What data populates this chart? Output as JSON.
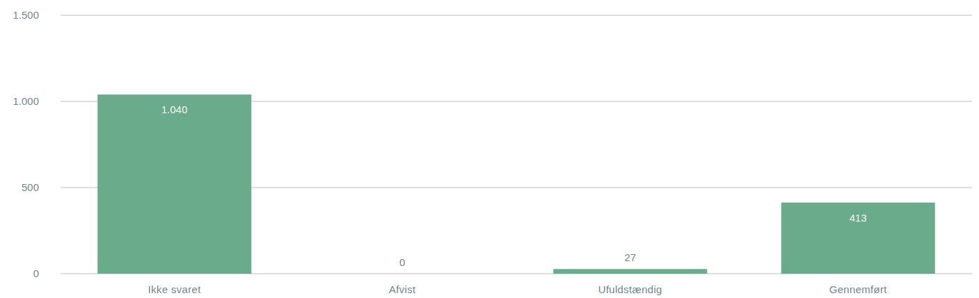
{
  "chart_data": {
    "type": "bar",
    "categories": [
      "Ikke svaret",
      "Afvist",
      "Ufuldstændig",
      "Gennemført"
    ],
    "values": [
      1040,
      0,
      27,
      413
    ],
    "value_labels": [
      "1.040",
      "0",
      "27",
      "413"
    ],
    "color": "#6aab8c",
    "ylim": [
      0,
      1500
    ],
    "yticks": [
      0,
      500,
      {
        "value": 1000,
        "label": "1.000"
      },
      {
        "value": 1500,
        "label": "1.500"
      }
    ],
    "grid": "y"
  }
}
